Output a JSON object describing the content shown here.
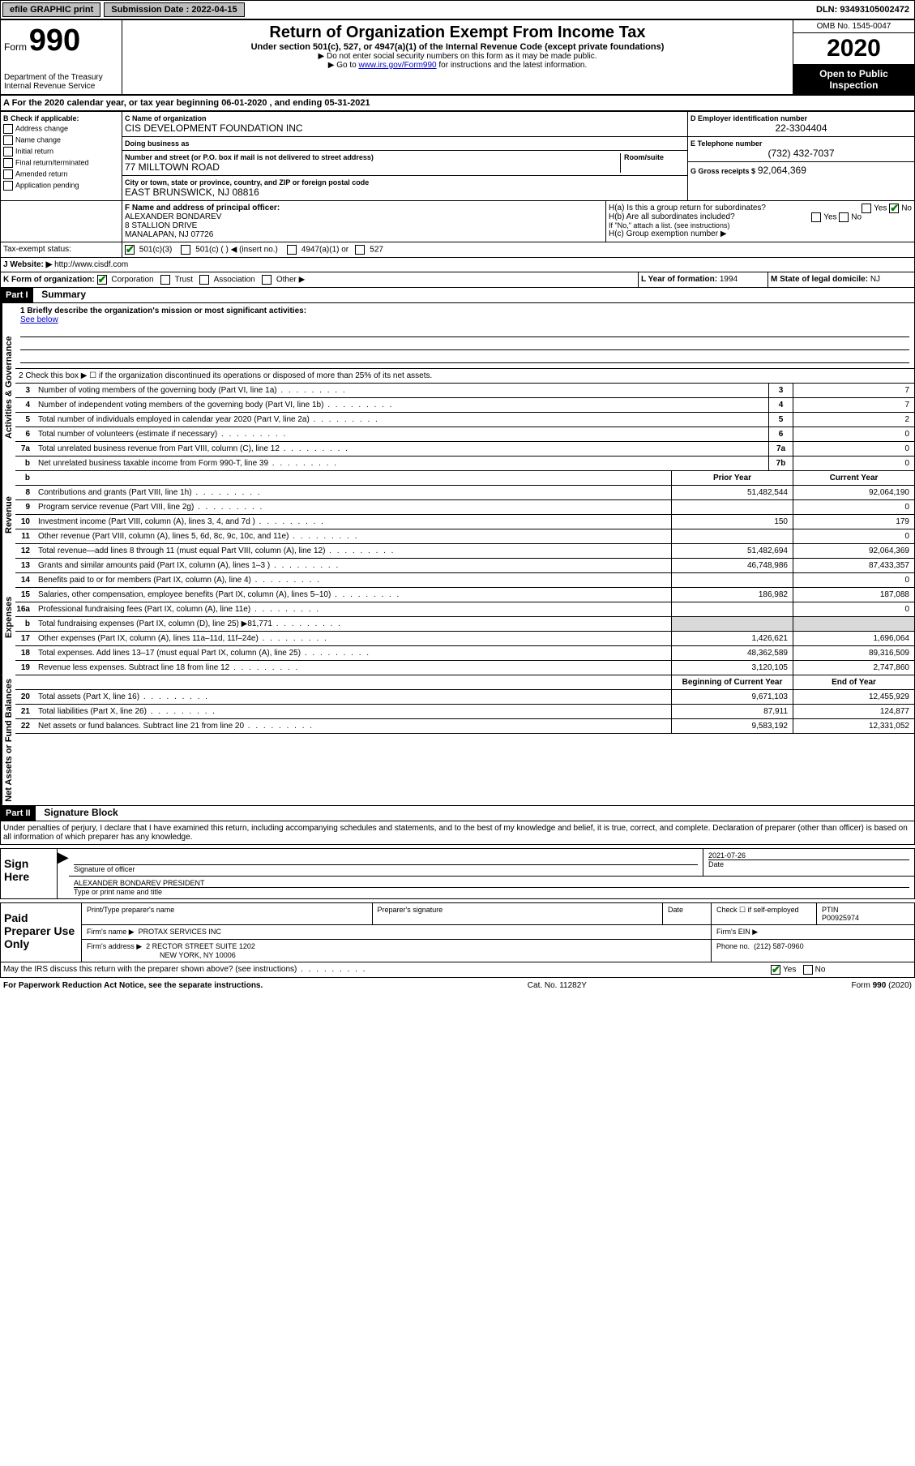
{
  "topbar": {
    "efile": "efile GRAPHIC print",
    "submission_label": "Submission Date : 2022-04-15",
    "dln": "DLN: 93493105002472"
  },
  "header": {
    "form_label": "Form",
    "form_number": "990",
    "dept": "Department of the Treasury\nInternal Revenue Service",
    "title": "Return of Organization Exempt From Income Tax",
    "subtitle": "Under section 501(c), 527, or 4947(a)(1) of the Internal Revenue Code (except private foundations)",
    "note1": "▶ Do not enter social security numbers on this form as it may be made public.",
    "note2_pre": "▶ Go to ",
    "note2_link": "www.irs.gov/Form990",
    "note2_post": " for instructions and the latest information.",
    "omb": "OMB No. 1545-0047",
    "year": "2020",
    "inspection": "Open to Public Inspection"
  },
  "period": {
    "text": "A For the 2020 calendar year, or tax year beginning 06-01-2020     , and ending 05-31-2021"
  },
  "sectionB": {
    "label": "B Check if applicable:",
    "items": [
      "Address change",
      "Name change",
      "Initial return",
      "Final return/terminated",
      "Amended return",
      "Application pending"
    ]
  },
  "sectionC": {
    "name_label": "C Name of organization",
    "name": "CIS DEVELOPMENT FOUNDATION INC",
    "dba_label": "Doing business as",
    "dba": "",
    "addr_label": "Number and street (or P.O. box if mail is not delivered to street address)",
    "room_label": "Room/suite",
    "addr": "77 MILLTOWN ROAD",
    "city_label": "City or town, state or province, country, and ZIP or foreign postal code",
    "city": "EAST BRUNSWICK, NJ  08816"
  },
  "sectionD": {
    "label": "D Employer identification number",
    "value": "22-3304404"
  },
  "sectionE": {
    "label": "E Telephone number",
    "value": "(732) 432-7037"
  },
  "sectionG": {
    "label": "G Gross receipts $",
    "value": "92,064,369"
  },
  "sectionF": {
    "label": "F Name and address of principal officer:",
    "name": "ALEXANDER BONDAREV",
    "addr1": "8 STALLION DRIVE",
    "addr2": "MANALAPAN, NJ  07726"
  },
  "sectionH": {
    "ha": "H(a)  Is this a group return for subordinates?",
    "hb": "H(b)  Are all subordinates included?",
    "hb_note": "If \"No,\" attach a list. (see instructions)",
    "hc": "H(c)  Group exemption number ▶",
    "yes": "Yes",
    "no": "No"
  },
  "taxExempt": {
    "label": "Tax-exempt status:",
    "opts": [
      "501(c)(3)",
      "501(c) (    ) ◀ (insert no.)",
      "4947(a)(1) or",
      "527"
    ]
  },
  "sectionJ": {
    "label": "J    Website: ▶",
    "value": "http://www.cisdf.com"
  },
  "sectionK": {
    "label": "K Form of organization:",
    "opts": [
      "Corporation",
      "Trust",
      "Association",
      "Other ▶"
    ]
  },
  "sectionL": {
    "label": "L Year of formation:",
    "value": "1994"
  },
  "sectionM": {
    "label": "M State of legal domicile:",
    "value": "NJ"
  },
  "part1": {
    "header": "Part I",
    "title": "Summary",
    "line1_label": "1   Briefly describe the organization's mission or most significant activities:",
    "line1_value": "See below",
    "line2": "2     Check this box ▶ ☐  if the organization discontinued its operations or disposed of more than 25% of its net assets.",
    "col_prior": "Prior Year",
    "col_current": "Current Year",
    "col_begin": "Beginning of Current Year",
    "col_end": "End of Year",
    "lines_gov": [
      {
        "n": "3",
        "d": "Number of voting members of the governing body (Part VI, line 1a)",
        "box": "3",
        "v": "7"
      },
      {
        "n": "4",
        "d": "Number of independent voting members of the governing body (Part VI, line 1b)",
        "box": "4",
        "v": "7"
      },
      {
        "n": "5",
        "d": "Total number of individuals employed in calendar year 2020 (Part V, line 2a)",
        "box": "5",
        "v": "2"
      },
      {
        "n": "6",
        "d": "Total number of volunteers (estimate if necessary)",
        "box": "6",
        "v": "0"
      },
      {
        "n": "7a",
        "d": "Total unrelated business revenue from Part VIII, column (C), line 12",
        "box": "7a",
        "v": "0"
      },
      {
        "n": "b",
        "d": "Net unrelated business taxable income from Form 990-T, line 39",
        "box": "7b",
        "v": "0"
      }
    ],
    "lines_rev": [
      {
        "n": "8",
        "d": "Contributions and grants (Part VIII, line 1h)",
        "p": "51,482,544",
        "c": "92,064,190"
      },
      {
        "n": "9",
        "d": "Program service revenue (Part VIII, line 2g)",
        "p": "",
        "c": "0"
      },
      {
        "n": "10",
        "d": "Investment income (Part VIII, column (A), lines 3, 4, and 7d )",
        "p": "150",
        "c": "179"
      },
      {
        "n": "11",
        "d": "Other revenue (Part VIII, column (A), lines 5, 6d, 8c, 9c, 10c, and 11e)",
        "p": "",
        "c": "0"
      },
      {
        "n": "12",
        "d": "Total revenue—add lines 8 through 11 (must equal Part VIII, column (A), line 12)",
        "p": "51,482,694",
        "c": "92,064,369"
      }
    ],
    "lines_exp": [
      {
        "n": "13",
        "d": "Grants and similar amounts paid (Part IX, column (A), lines 1–3 )",
        "p": "46,748,986",
        "c": "87,433,357"
      },
      {
        "n": "14",
        "d": "Benefits paid to or for members (Part IX, column (A), line 4)",
        "p": "",
        "c": "0"
      },
      {
        "n": "15",
        "d": "Salaries, other compensation, employee benefits (Part IX, column (A), lines 5–10)",
        "p": "186,982",
        "c": "187,088"
      },
      {
        "n": "16a",
        "d": "Professional fundraising fees (Part IX, column (A), line 11e)",
        "p": "",
        "c": "0"
      },
      {
        "n": "b",
        "d": "Total fundraising expenses (Part IX, column (D), line 25) ▶81,771",
        "p": "grey",
        "c": "grey"
      },
      {
        "n": "17",
        "d": "Other expenses (Part IX, column (A), lines 11a–11d, 11f–24e)",
        "p": "1,426,621",
        "c": "1,696,064"
      },
      {
        "n": "18",
        "d": "Total expenses. Add lines 13–17 (must equal Part IX, column (A), line 25)",
        "p": "48,362,589",
        "c": "89,316,509"
      },
      {
        "n": "19",
        "d": "Revenue less expenses. Subtract line 18 from line 12",
        "p": "3,120,105",
        "c": "2,747,860"
      }
    ],
    "lines_net": [
      {
        "n": "20",
        "d": "Total assets (Part X, line 16)",
        "p": "9,671,103",
        "c": "12,455,929"
      },
      {
        "n": "21",
        "d": "Total liabilities (Part X, line 26)",
        "p": "87,911",
        "c": "124,877"
      },
      {
        "n": "22",
        "d": "Net assets or fund balances. Subtract line 21 from line 20",
        "p": "9,583,192",
        "c": "12,331,052"
      }
    ]
  },
  "part2": {
    "header": "Part II",
    "title": "Signature Block",
    "penalty": "Under penalties of perjury, I declare that I have examined this return, including accompanying schedules and statements, and to the best of my knowledge and belief, it is true, correct, and complete. Declaration of preparer (other than officer) is based on all information of which preparer has any knowledge."
  },
  "sign": {
    "label": "Sign Here",
    "sig_officer": "Signature of officer",
    "date": "2021-07-26",
    "date_label": "Date",
    "name": "ALEXANDER BONDAREV  PRESIDENT",
    "name_label": "Type or print name and title"
  },
  "preparer": {
    "label": "Paid Preparer Use Only",
    "print_name": "Print/Type preparer's name",
    "prep_sig": "Preparer's signature",
    "date": "Date",
    "check_self": "Check ☐ if self-employed",
    "ptin_label": "PTIN",
    "ptin": "P00925974",
    "firm_name_label": "Firm's name   ▶",
    "firm_name": "PROTAX SERVICES INC",
    "firm_ein_label": "Firm's EIN ▶",
    "firm_addr_label": "Firm's address ▶",
    "firm_addr1": "2 RECTOR STREET SUITE 1202",
    "firm_addr2": "NEW YORK, NY  10006",
    "phone_label": "Phone no.",
    "phone": "(212) 587-0960"
  },
  "discuss": {
    "text": "May the IRS discuss this return with the preparer shown above? (see instructions)",
    "yes": "Yes",
    "no": "No"
  },
  "footer": {
    "left": "For Paperwork Reduction Act Notice, see the separate instructions.",
    "mid": "Cat. No. 11282Y",
    "right": "Form 990 (2020)"
  },
  "vert": {
    "gov": "Activities & Governance",
    "rev": "Revenue",
    "exp": "Expenses",
    "net": "Net Assets or Fund Balances"
  }
}
